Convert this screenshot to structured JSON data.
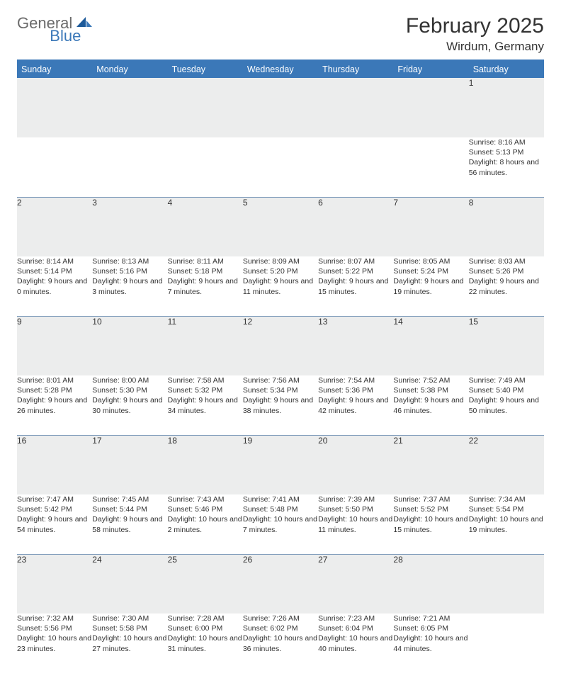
{
  "logo": {
    "text1": "General",
    "text2": "Blue"
  },
  "title": "February 2025",
  "location": "Wirdum, Germany",
  "colors": {
    "header_bg": "#3b78b8",
    "header_text": "#ffffff",
    "daynum_bg": "#eceded",
    "row_divider": "#7a98b8",
    "logo_gray": "#6b6b6b",
    "logo_blue": "#3b78b8"
  },
  "weekdays": [
    "Sunday",
    "Monday",
    "Tuesday",
    "Wednesday",
    "Thursday",
    "Friday",
    "Saturday"
  ],
  "weeks": [
    [
      {
        "day": "",
        "text": ""
      },
      {
        "day": "",
        "text": ""
      },
      {
        "day": "",
        "text": ""
      },
      {
        "day": "",
        "text": ""
      },
      {
        "day": "",
        "text": ""
      },
      {
        "day": "",
        "text": ""
      },
      {
        "day": "1",
        "text": "Sunrise: 8:16 AM\nSunset: 5:13 PM\nDaylight: 8 hours and 56 minutes."
      }
    ],
    [
      {
        "day": "2",
        "text": "Sunrise: 8:14 AM\nSunset: 5:14 PM\nDaylight: 9 hours and 0 minutes."
      },
      {
        "day": "3",
        "text": "Sunrise: 8:13 AM\nSunset: 5:16 PM\nDaylight: 9 hours and 3 minutes."
      },
      {
        "day": "4",
        "text": "Sunrise: 8:11 AM\nSunset: 5:18 PM\nDaylight: 9 hours and 7 minutes."
      },
      {
        "day": "5",
        "text": "Sunrise: 8:09 AM\nSunset: 5:20 PM\nDaylight: 9 hours and 11 minutes."
      },
      {
        "day": "6",
        "text": "Sunrise: 8:07 AM\nSunset: 5:22 PM\nDaylight: 9 hours and 15 minutes."
      },
      {
        "day": "7",
        "text": "Sunrise: 8:05 AM\nSunset: 5:24 PM\nDaylight: 9 hours and 19 minutes."
      },
      {
        "day": "8",
        "text": "Sunrise: 8:03 AM\nSunset: 5:26 PM\nDaylight: 9 hours and 22 minutes."
      }
    ],
    [
      {
        "day": "9",
        "text": "Sunrise: 8:01 AM\nSunset: 5:28 PM\nDaylight: 9 hours and 26 minutes."
      },
      {
        "day": "10",
        "text": "Sunrise: 8:00 AM\nSunset: 5:30 PM\nDaylight: 9 hours and 30 minutes."
      },
      {
        "day": "11",
        "text": "Sunrise: 7:58 AM\nSunset: 5:32 PM\nDaylight: 9 hours and 34 minutes."
      },
      {
        "day": "12",
        "text": "Sunrise: 7:56 AM\nSunset: 5:34 PM\nDaylight: 9 hours and 38 minutes."
      },
      {
        "day": "13",
        "text": "Sunrise: 7:54 AM\nSunset: 5:36 PM\nDaylight: 9 hours and 42 minutes."
      },
      {
        "day": "14",
        "text": "Sunrise: 7:52 AM\nSunset: 5:38 PM\nDaylight: 9 hours and 46 minutes."
      },
      {
        "day": "15",
        "text": "Sunrise: 7:49 AM\nSunset: 5:40 PM\nDaylight: 9 hours and 50 minutes."
      }
    ],
    [
      {
        "day": "16",
        "text": "Sunrise: 7:47 AM\nSunset: 5:42 PM\nDaylight: 9 hours and 54 minutes."
      },
      {
        "day": "17",
        "text": "Sunrise: 7:45 AM\nSunset: 5:44 PM\nDaylight: 9 hours and 58 minutes."
      },
      {
        "day": "18",
        "text": "Sunrise: 7:43 AM\nSunset: 5:46 PM\nDaylight: 10 hours and 2 minutes."
      },
      {
        "day": "19",
        "text": "Sunrise: 7:41 AM\nSunset: 5:48 PM\nDaylight: 10 hours and 7 minutes."
      },
      {
        "day": "20",
        "text": "Sunrise: 7:39 AM\nSunset: 5:50 PM\nDaylight: 10 hours and 11 minutes."
      },
      {
        "day": "21",
        "text": "Sunrise: 7:37 AM\nSunset: 5:52 PM\nDaylight: 10 hours and 15 minutes."
      },
      {
        "day": "22",
        "text": "Sunrise: 7:34 AM\nSunset: 5:54 PM\nDaylight: 10 hours and 19 minutes."
      }
    ],
    [
      {
        "day": "23",
        "text": "Sunrise: 7:32 AM\nSunset: 5:56 PM\nDaylight: 10 hours and 23 minutes."
      },
      {
        "day": "24",
        "text": "Sunrise: 7:30 AM\nSunset: 5:58 PM\nDaylight: 10 hours and 27 minutes."
      },
      {
        "day": "25",
        "text": "Sunrise: 7:28 AM\nSunset: 6:00 PM\nDaylight: 10 hours and 31 minutes."
      },
      {
        "day": "26",
        "text": "Sunrise: 7:26 AM\nSunset: 6:02 PM\nDaylight: 10 hours and 36 minutes."
      },
      {
        "day": "27",
        "text": "Sunrise: 7:23 AM\nSunset: 6:04 PM\nDaylight: 10 hours and 40 minutes."
      },
      {
        "day": "28",
        "text": "Sunrise: 7:21 AM\nSunset: 6:05 PM\nDaylight: 10 hours and 44 minutes."
      },
      {
        "day": "",
        "text": ""
      }
    ]
  ]
}
